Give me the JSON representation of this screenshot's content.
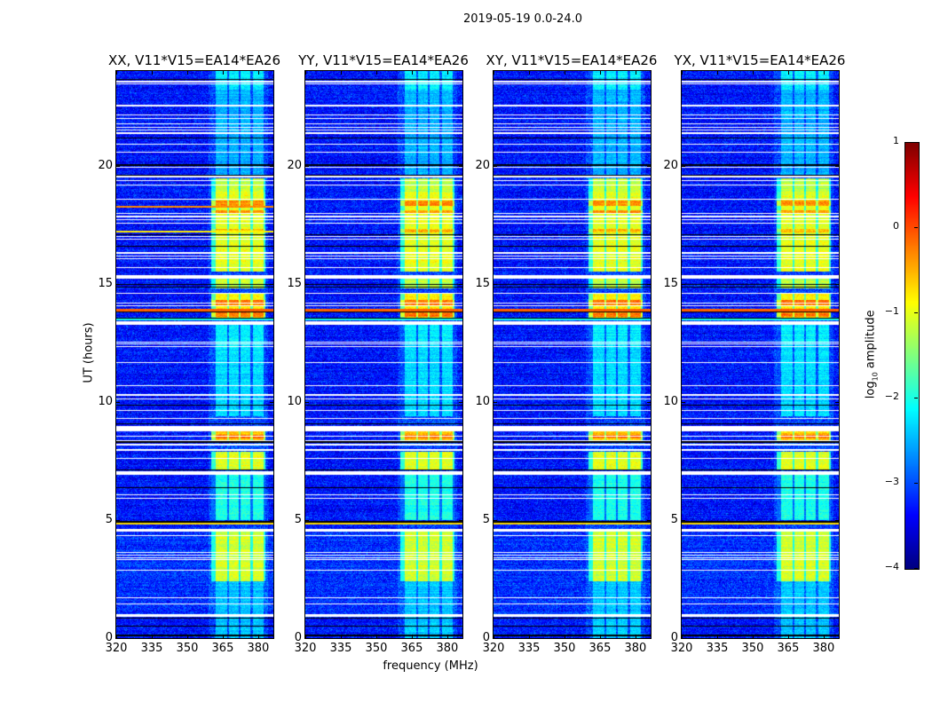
{
  "figure_title": "2019-05-19 0.0-24.0",
  "chart_data": {
    "type": "heatmap",
    "title": "2019-05-19 0.0-24.0",
    "xlabel": "frequency (MHz)",
    "ylabel": "UT (hours)",
    "xlim": [
      320,
      386.4
    ],
    "ylim": [
      0,
      24
    ],
    "xticks": [
      "320",
      "335",
      "350",
      "365",
      "380"
    ],
    "xtick_values": [
      320,
      335,
      350,
      365,
      380
    ],
    "yticks": [
      "0",
      "5",
      "10",
      "15",
      "20"
    ],
    "ytick_values": [
      0,
      5,
      10,
      15,
      20
    ],
    "panels": [
      {
        "title": "XX, V11*V15=EA14*EA26",
        "seed": 11,
        "extra_lines": true
      },
      {
        "title": "YY, V11*V15=EA14*EA26",
        "seed": 23,
        "extra_lines": false
      },
      {
        "title": "XY, V11*V15=EA14*EA26",
        "seed": 37,
        "extra_lines": false
      },
      {
        "title": "YX, V11*V15=EA14*EA26",
        "seed": 51,
        "extra_lines": false
      }
    ],
    "colorbar": {
      "label_main": "log",
      "label_sub": "10",
      "label_rest": " amplitude",
      "range": [
        -4,
        1
      ],
      "ticks": [
        "1",
        "0",
        "−1",
        "−2",
        "−3",
        "−4"
      ],
      "tick_values": [
        1,
        0,
        -1,
        -2,
        -3,
        -4
      ],
      "colormap": "jet"
    },
    "background_level": -3.3,
    "rfi_bands_mhz": [
      [
        362,
        366.9
      ],
      [
        367.6,
        371.8
      ],
      [
        372.5,
        376.6
      ],
      [
        377.8,
        382.3
      ]
    ],
    "activity": [
      {
        "t": [
          23.2,
          24
        ],
        "level": -2.2
      },
      {
        "t": [
          19.6,
          23.2
        ],
        "level": -2.5
      },
      {
        "t": [
          18.9,
          19.45
        ],
        "level": -1.2
      },
      {
        "t": [
          15.5,
          18.9
        ],
        "level": -1.0
      },
      {
        "t": [
          18.3,
          18.5
        ],
        "level": -0.3
      },
      {
        "t": [
          17.95,
          18.1
        ],
        "level": -0.4
      },
      {
        "t": [
          17.15,
          17.3
        ],
        "level": -0.5
      },
      {
        "t": [
          14.8,
          15.2
        ],
        "level": -1.2
      },
      {
        "t": [
          13.5,
          14.6
        ],
        "level": -0.8
      },
      {
        "t": [
          14.1,
          14.3
        ],
        "level": -0.2
      },
      {
        "t": [
          13.6,
          13.8
        ],
        "level": -0.2
      },
      {
        "t": [
          12.3,
          13.3
        ],
        "level": -2.2
      },
      {
        "t": [
          9.4,
          12.3
        ],
        "level": -2.3
      },
      {
        "t": [
          8.3,
          8.8
        ],
        "level": -0.6
      },
      {
        "t": [
          8.45,
          8.6
        ],
        "level": -0.2
      },
      {
        "t": [
          7.1,
          7.9
        ],
        "level": -1.0
      },
      {
        "t": [
          5.0,
          6.9
        ],
        "level": -2.0
      },
      {
        "t": [
          2.4,
          4.5
        ],
        "level": -1.1
      },
      {
        "t": [
          0,
          2.4
        ],
        "level": -2.4
      }
    ],
    "flagged_rows_hours": [
      [
        23.53,
        23.58
      ],
      [
        23.45,
        23.49
      ],
      [
        22.54,
        22.58
      ],
      [
        22.48,
        22.52
      ],
      [
        22.13,
        22.17
      ],
      [
        21.98,
        22.02
      ],
      [
        21.76,
        21.8
      ],
      [
        21.61,
        21.65
      ],
      [
        21.48,
        21.52
      ],
      [
        21.35,
        21.39
      ],
      [
        20.88,
        20.92
      ],
      [
        20.54,
        20.58
      ],
      [
        19.9,
        19.95
      ],
      [
        19.51,
        19.55
      ],
      [
        19.35,
        19.39
      ],
      [
        19.16,
        19.2
      ],
      [
        18.57,
        18.61
      ],
      [
        17.94,
        17.98
      ],
      [
        17.82,
        17.86
      ],
      [
        17.69,
        17.73
      ],
      [
        17.53,
        17.57
      ],
      [
        16.96,
        17.0
      ],
      [
        16.87,
        16.91
      ],
      [
        16.28,
        16.32
      ],
      [
        16.15,
        16.19
      ],
      [
        16.03,
        16.07
      ],
      [
        15.65,
        15.69
      ],
      [
        15.2,
        15.35
      ],
      [
        14.58,
        14.62
      ],
      [
        14.15,
        14.19
      ],
      [
        14.05,
        14.09
      ],
      [
        13.25,
        13.4
      ],
      [
        12.52,
        12.56
      ],
      [
        12.42,
        12.46
      ],
      [
        12.33,
        12.37
      ],
      [
        11.65,
        11.69
      ],
      [
        10.67,
        10.71
      ],
      [
        10.27,
        10.31
      ],
      [
        10.11,
        10.15
      ],
      [
        9.62,
        9.66
      ],
      [
        9.29,
        9.33
      ],
      [
        8.75,
        8.98
      ],
      [
        8.52,
        8.56
      ],
      [
        8.33,
        8.37
      ],
      [
        8.15,
        8.22
      ],
      [
        7.93,
        8.0
      ],
      [
        7.58,
        7.62
      ],
      [
        6.91,
        7.06
      ],
      [
        6.05,
        6.09
      ],
      [
        5.91,
        5.95
      ],
      [
        4.5,
        4.62
      ],
      [
        4.32,
        4.36
      ],
      [
        3.61,
        3.65
      ],
      [
        3.48,
        3.52
      ],
      [
        3.38,
        3.42
      ],
      [
        3.3,
        3.34
      ],
      [
        2.86,
        2.9
      ],
      [
        1.7,
        1.74
      ],
      [
        1.44,
        1.48
      ],
      [
        0.9,
        1.02
      ]
    ],
    "dropout_rows_hours": [
      23.66,
      21.18,
      20.05,
      20.02,
      19.6,
      17.08,
      16.59,
      14.98,
      14.86,
      13.79,
      13.55,
      9.85,
      9.07,
      8.3,
      7.13,
      6.38,
      4.92,
      0.86,
      0.49,
      0.12,
      0.1
    ],
    "broadband_rows": [
      {
        "t": 13.88,
        "level": -0.1,
        "panels": [
          0,
          1,
          2,
          3
        ]
      },
      {
        "t": 18.24,
        "level": -0.3,
        "panels": [
          0
        ]
      },
      {
        "t": 17.2,
        "level": -0.8,
        "panels": [
          0
        ]
      },
      {
        "t": 13.48,
        "level": -2.0,
        "panels": [
          0,
          1,
          2,
          3
        ]
      },
      {
        "t": 4.84,
        "level": -0.7,
        "panels": [
          0,
          1,
          2,
          3
        ]
      }
    ]
  }
}
